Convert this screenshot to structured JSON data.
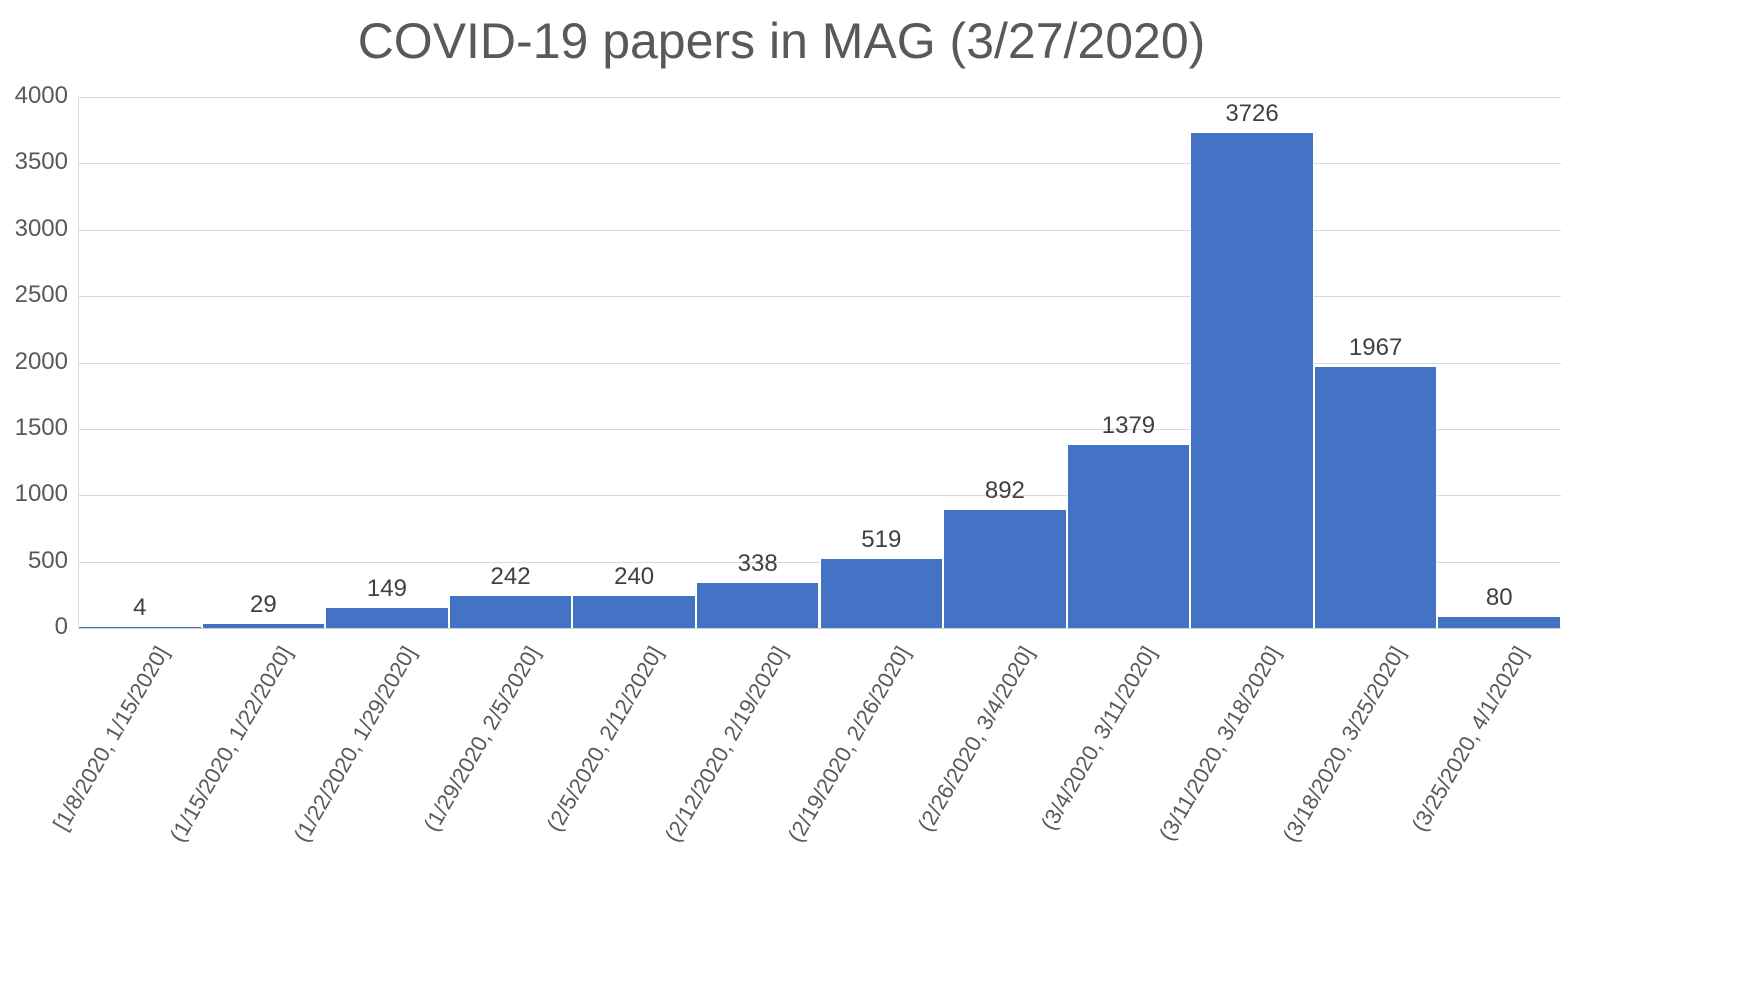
{
  "chart_data": {
    "type": "bar",
    "title": "COVID-19 papers in MAG (3/27/2020)",
    "xlabel": "",
    "ylabel": "",
    "ylim": [
      0,
      4000
    ],
    "yticks": [
      0,
      500,
      1000,
      1500,
      2000,
      2500,
      3000,
      3500,
      4000
    ],
    "grid": true,
    "legend": null,
    "bar_color": "#4472c4",
    "categories": [
      "[1/8/2020, 1/15/2020]",
      "(1/15/2020, 1/22/2020]",
      "(1/22/2020, 1/29/2020]",
      "(1/29/2020, 2/5/2020]",
      "(2/5/2020, 2/12/2020]",
      "(2/12/2020, 2/19/2020]",
      "(2/19/2020, 2/26/2020]",
      "(2/26/2020, 3/4/2020]",
      "(3/4/2020, 3/11/2020]",
      "(3/11/2020, 3/18/2020]",
      "(3/18/2020, 3/25/2020]",
      "(3/25/2020, 4/1/2020]"
    ],
    "values": [
      4,
      29,
      149,
      242,
      240,
      338,
      519,
      892,
      1379,
      3726,
      1967,
      80
    ],
    "data_labels": [
      "4",
      "29",
      "149",
      "242",
      "240",
      "338",
      "519",
      "892",
      "1379",
      "3726",
      "1967",
      "80"
    ]
  }
}
